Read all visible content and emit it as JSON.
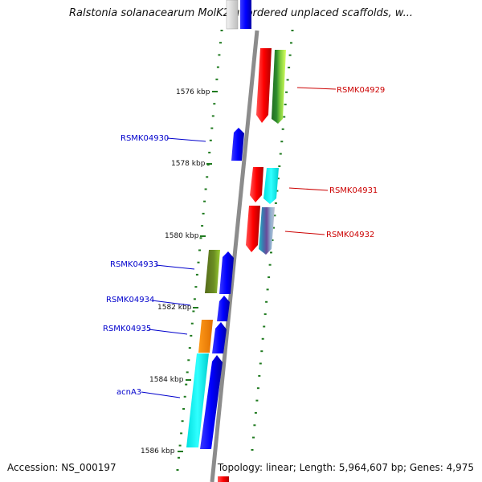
{
  "title": "Ralstonia solanacearum MolK2 unordered unplaced scaffolds, w...",
  "footer": {
    "accession": "Accession: NS_000197",
    "topology": "Topology: linear; Length: 5,964,607 bp; Genes: 4,975"
  },
  "colors": {
    "backbone": "#8c8c8c",
    "tick": "#1f7a1f",
    "label_blue": "#0000cc",
    "label_red": "#cc0000"
  },
  "scale_labels": [
    "1576 kbp",
    "1578 kbp",
    "1580 kbp",
    "1582 kbp",
    "1584 kbp",
    "1586 kbp"
  ],
  "genes": [
    {
      "name": "RSMK04929",
      "strand": "reverse"
    },
    {
      "name": "RSMK04930",
      "strand": "forward"
    },
    {
      "name": "RSMK04931",
      "strand": "reverse"
    },
    {
      "name": "RSMK04932",
      "strand": "reverse"
    },
    {
      "name": "RSMK04933",
      "strand": "forward"
    },
    {
      "name": "RSMK04934",
      "strand": "forward"
    },
    {
      "name": "RSMK04935",
      "strand": "forward"
    },
    {
      "name": "acnA3",
      "strand": "forward"
    }
  ]
}
